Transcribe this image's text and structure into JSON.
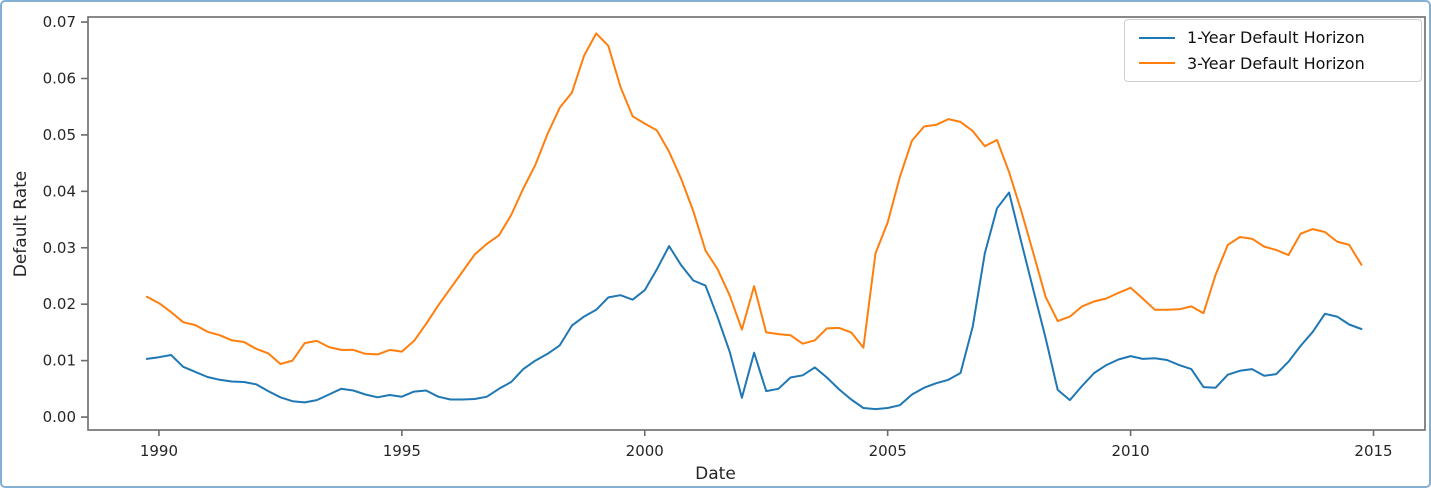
{
  "figure": {
    "background": "#ffffff",
    "outer_border_color": "#85aed3",
    "spine_color": "#6b6b6b",
    "text_color": "#262626"
  },
  "legend": {
    "position": "upper right",
    "entries": [
      {
        "label": "1-Year Default Horizon",
        "color": "#1f77b4"
      },
      {
        "label": "3-Year Default Horizon",
        "color": "#ff7f0e"
      }
    ]
  },
  "chart_data": {
    "type": "line",
    "title": "",
    "xlabel": "Date",
    "ylabel": "Default Rate",
    "grid": false,
    "legend_position": "upper right",
    "xlim": [
      1988.54,
      2016.06
    ],
    "ylim": [
      -0.0023,
      0.0709
    ],
    "x_ticks": [
      1990,
      1995,
      2000,
      2005,
      2010,
      2015
    ],
    "y_tick_labels": [
      "0.00",
      "0.01",
      "0.02",
      "0.03",
      "0.04",
      "0.05",
      "0.06",
      "0.07"
    ],
    "x": [
      1989.75,
      1990.0,
      1990.25,
      1990.5,
      1990.75,
      1991.0,
      1991.25,
      1991.5,
      1991.75,
      1992.0,
      1992.25,
      1992.5,
      1992.75,
      1993.0,
      1993.25,
      1993.5,
      1993.75,
      1994.0,
      1994.25,
      1994.5,
      1994.75,
      1995.0,
      1995.25,
      1995.5,
      1995.75,
      1996.0,
      1996.25,
      1996.5,
      1996.75,
      1997.0,
      1997.25,
      1997.5,
      1997.75,
      1998.0,
      1998.25,
      1998.5,
      1998.75,
      1999.0,
      1999.25,
      1999.5,
      1999.75,
      2000.0,
      2000.25,
      2000.5,
      2000.75,
      2001.0,
      2001.25,
      2001.5,
      2001.75,
      2002.0,
      2002.25,
      2002.5,
      2002.75,
      2003.0,
      2003.25,
      2003.5,
      2003.75,
      2004.0,
      2004.25,
      2004.5,
      2004.75,
      2005.0,
      2005.25,
      2005.5,
      2005.75,
      2006.0,
      2006.25,
      2006.5,
      2006.75,
      2007.0,
      2007.25,
      2007.5,
      2007.75,
      2008.0,
      2008.25,
      2008.5,
      2008.75,
      2009.0,
      2009.25,
      2009.5,
      2009.75,
      2010.0,
      2010.25,
      2010.5,
      2010.75,
      2011.0,
      2011.25,
      2011.5,
      2011.75,
      2012.0,
      2012.25,
      2012.5,
      2012.75,
      2013.0,
      2013.25,
      2013.5,
      2013.75,
      2014.0,
      2014.25,
      2014.5,
      2014.75
    ],
    "series": [
      {
        "name": "1-Year Default Horizon",
        "color": "#1f77b4",
        "values": [
          0.0103,
          0.0106,
          0.011,
          0.0089,
          0.008,
          0.0071,
          0.0066,
          0.0063,
          0.0062,
          0.0058,
          0.0046,
          0.0035,
          0.0028,
          0.0026,
          0.003,
          0.004,
          0.005,
          0.0047,
          0.004,
          0.0035,
          0.0039,
          0.0036,
          0.0045,
          0.0047,
          0.0036,
          0.0031,
          0.0031,
          0.0032,
          0.0036,
          0.005,
          0.0062,
          0.0085,
          0.01,
          0.0112,
          0.0127,
          0.0162,
          0.0178,
          0.019,
          0.0212,
          0.0216,
          0.0208,
          0.0225,
          0.0262,
          0.0303,
          0.0269,
          0.0242,
          0.0233,
          0.0177,
          0.0115,
          0.0034,
          0.0114,
          0.0046,
          0.005,
          0.007,
          0.0074,
          0.0088,
          0.007,
          0.0049,
          0.0031,
          0.0016,
          0.0014,
          0.0016,
          0.0021,
          0.004,
          0.0052,
          0.006,
          0.0066,
          0.0078,
          0.016,
          0.029,
          0.037,
          0.0398,
          0.031,
          0.0225,
          0.014,
          0.0048,
          0.003,
          0.0055,
          0.0078,
          0.0092,
          0.0102,
          0.0108,
          0.0103,
          0.0104,
          0.0101,
          0.0092,
          0.0085,
          0.0053,
          0.0052,
          0.0075,
          0.0082,
          0.0085,
          0.0073,
          0.0076,
          0.0098,
          0.0126,
          0.0151,
          0.0183,
          0.0178,
          0.0164,
          0.0156
        ]
      },
      {
        "name": "3-Year Default Horizon",
        "color": "#ff7f0e",
        "values": [
          0.0213,
          0.0202,
          0.0186,
          0.0168,
          0.0163,
          0.0151,
          0.0145,
          0.0136,
          0.0133,
          0.0121,
          0.0113,
          0.0094,
          0.01,
          0.0131,
          0.0135,
          0.0124,
          0.0119,
          0.0119,
          0.0112,
          0.0111,
          0.0119,
          0.0116,
          0.0135,
          0.0165,
          0.0198,
          0.0228,
          0.0258,
          0.0288,
          0.0307,
          0.0322,
          0.0358,
          0.0405,
          0.0447,
          0.0502,
          0.0548,
          0.0575,
          0.064,
          0.068,
          0.0658,
          0.0585,
          0.0533,
          0.052,
          0.0508,
          0.047,
          0.0422,
          0.0365,
          0.0295,
          0.0262,
          0.0215,
          0.0155,
          0.0232,
          0.015,
          0.0147,
          0.0145,
          0.013,
          0.0136,
          0.0157,
          0.0158,
          0.015,
          0.0123,
          0.029,
          0.0345,
          0.0425,
          0.049,
          0.0515,
          0.0518,
          0.0528,
          0.0523,
          0.0507,
          0.048,
          0.0491,
          0.0434,
          0.0365,
          0.029,
          0.0213,
          0.017,
          0.0178,
          0.0196,
          0.0205,
          0.021,
          0.022,
          0.0229,
          0.021,
          0.019,
          0.019,
          0.0191,
          0.0196,
          0.0184,
          0.0252,
          0.0305,
          0.0319,
          0.0316,
          0.0302,
          0.0296,
          0.0287,
          0.0325,
          0.0333,
          0.0328,
          0.0311,
          0.0305,
          0.027
        ]
      }
    ]
  }
}
